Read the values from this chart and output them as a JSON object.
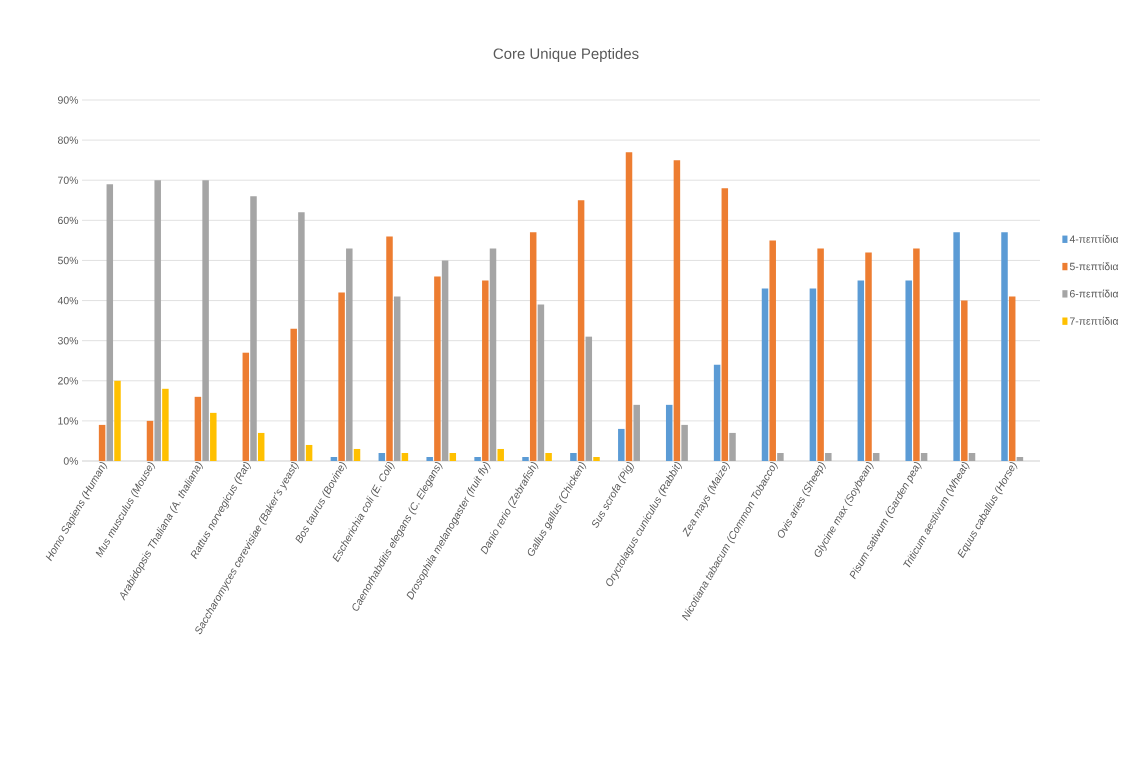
{
  "chart_data": {
    "type": "bar",
    "title": "Core Unique Peptides",
    "categories": [
      "Homo Sapiens (Human)",
      "Mus musculus (Mouse)",
      "Arabidopsis Thaliana (A. thaliana)",
      "Rattus norvegicus (Rat)",
      "Saccharomyces cerevisiae (Baker’s yeast)",
      "Bos taurus (Bovine)",
      "Escherichia coli (E. Coli)",
      "Caenorhabditis elegans (C. Elegans)",
      "Drosophila melanogaster (fruit fly)",
      "Danio rerio (Zebrafish)",
      "Gallus gallus (Chicken)",
      "Sus scrofa (Pig)",
      "Oryctolagus cuniculus (Rabbit)",
      "Zea mays (Maize)",
      "Nicotiana tabacum (Common Tobacco)",
      "Ovis aries (Sheep)",
      "Glycine max (Soybean)",
      "Pisum sativum (Garden pea)",
      "Triticum aestivum (Wheat)",
      "Equus caballus (Horse)"
    ],
    "series": [
      {
        "name": "4-πεπτίδια",
        "color": "#5b9bd5",
        "values": [
          0,
          0,
          0,
          0,
          0,
          1,
          2,
          1,
          1,
          1,
          2,
          8,
          14,
          24,
          43,
          43,
          45,
          45,
          57,
          57
        ]
      },
      {
        "name": "5-πεπτίδια",
        "color": "#ed7d31",
        "values": [
          9,
          10,
          16,
          27,
          33,
          42,
          56,
          46,
          45,
          57,
          65,
          77,
          75,
          68,
          55,
          53,
          52,
          53,
          40,
          41
        ]
      },
      {
        "name": "6-πεπτίδια",
        "color": "#a5a5a5",
        "values": [
          69,
          70,
          70,
          66,
          62,
          53,
          41,
          50,
          53,
          39,
          31,
          14,
          9,
          7,
          2,
          2,
          2,
          2,
          2,
          1
        ]
      },
      {
        "name": "7-πεπτίδια",
        "color": "#ffc000",
        "values": [
          20,
          18,
          12,
          7,
          4,
          3,
          2,
          2,
          3,
          2,
          1,
          0,
          0,
          0,
          0,
          0,
          0,
          0,
          0,
          0
        ]
      }
    ],
    "ylim": [
      0,
      90
    ],
    "yticks": [
      {
        "value": 0,
        "label": "0%"
      },
      {
        "value": 10,
        "label": "10%"
      },
      {
        "value": 20,
        "label": "20%"
      },
      {
        "value": 30,
        "label": "30%"
      },
      {
        "value": 40,
        "label": "40%"
      },
      {
        "value": 50,
        "label": "50%"
      },
      {
        "value": 60,
        "label": "60%"
      },
      {
        "value": 70,
        "label": "70%"
      },
      {
        "value": 80,
        "label": "80%"
      },
      {
        "value": 90,
        "label": "90%"
      }
    ],
    "grid": "y",
    "legend": "right"
  }
}
